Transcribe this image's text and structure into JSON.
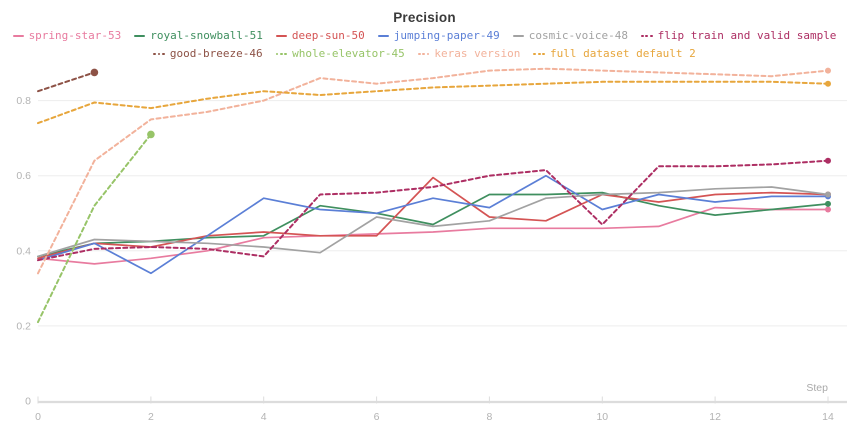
{
  "title": "Precision",
  "chart_data": {
    "type": "line",
    "title": "Precision",
    "xlabel": "Step",
    "x": [
      0,
      1,
      2,
      3,
      4,
      5,
      6,
      7,
      8,
      9,
      10,
      11,
      12,
      13,
      14
    ],
    "xticks": [
      0,
      2,
      4,
      6,
      8,
      10,
      12,
      14
    ],
    "yticks": [
      0,
      0.2,
      0.4,
      0.6,
      0.8
    ],
    "ylim": [
      0,
      0.95
    ],
    "xlim": [
      0,
      14
    ],
    "grid": true,
    "legend_position": "top",
    "grid_color": "#ededed",
    "axis_color": "#dcdcdc",
    "series": [
      {
        "name": "spring-star-53",
        "color": "#e87b9f",
        "dash": false,
        "values": [
          0.38,
          0.365,
          0.38,
          0.4,
          0.435,
          0.44,
          0.445,
          0.45,
          0.46,
          0.46,
          0.46,
          0.465,
          0.515,
          0.51,
          0.51
        ]
      },
      {
        "name": "royal-snowball-51",
        "color": "#3f8f5f",
        "dash": false,
        "values": [
          0.385,
          0.42,
          0.425,
          0.435,
          0.44,
          0.52,
          0.5,
          0.47,
          0.55,
          0.55,
          0.555,
          0.52,
          0.495,
          0.51,
          0.525
        ]
      },
      {
        "name": "deep-sun-50",
        "color": "#d45454",
        "dash": false,
        "values": [
          0.38,
          0.42,
          0.41,
          0.44,
          0.45,
          0.44,
          0.44,
          0.595,
          0.49,
          0.48,
          0.55,
          0.53,
          0.55,
          0.555,
          0.55
        ]
      },
      {
        "name": "jumping-paper-49",
        "color": "#5b7fd6",
        "dash": false,
        "values": [
          0.375,
          0.42,
          0.34,
          0.44,
          0.54,
          0.51,
          0.5,
          0.54,
          0.515,
          0.6,
          0.51,
          0.55,
          0.53,
          0.545,
          0.545
        ]
      },
      {
        "name": "cosmic-voice-48",
        "color": "#a2a2a2",
        "dash": false,
        "values": [
          0.385,
          0.43,
          0.425,
          0.42,
          0.41,
          0.395,
          0.49,
          0.465,
          0.48,
          0.54,
          0.55,
          0.555,
          0.565,
          0.57,
          0.55
        ]
      },
      {
        "name": "flip train and valid sample",
        "color": "#ad2e63",
        "dash": true,
        "values": [
          0.375,
          0.405,
          0.41,
          0.405,
          0.385,
          0.55,
          0.555,
          0.57,
          0.6,
          0.615,
          0.47,
          0.625,
          0.625,
          0.63,
          0.64
        ]
      },
      {
        "name": "good-breeze-46",
        "color": "#8d5246",
        "dash": true,
        "values": [
          0.825,
          0.875
        ]
      },
      {
        "name": "whole-elevator-45",
        "color": "#97c468",
        "dash": true,
        "values": [
          0.21,
          0.52,
          0.71
        ]
      },
      {
        "name": "keras version",
        "color": "#f2b29b",
        "dash": true,
        "values": [
          0.34,
          0.64,
          0.75,
          0.77,
          0.8,
          0.86,
          0.845,
          0.86,
          0.88,
          0.885,
          0.88,
          0.875,
          0.87,
          0.865,
          0.88
        ]
      },
      {
        "name": "full dataset default 2",
        "color": "#e7a63c",
        "dash": true,
        "values": [
          0.74,
          0.795,
          0.78,
          0.805,
          0.825,
          0.815,
          0.825,
          0.835,
          0.84,
          0.845,
          0.85,
          0.85,
          0.85,
          0.85,
          0.845
        ]
      }
    ],
    "legend_rows": [
      [
        "spring-star-53",
        "royal-snowball-51",
        "deep-sun-50",
        "jumping-paper-49",
        "cosmic-voice-48",
        "flip train and valid sample"
      ],
      [
        "good-breeze-46",
        "whole-elevator-45",
        "keras version",
        "full dataset default 2"
      ]
    ]
  }
}
